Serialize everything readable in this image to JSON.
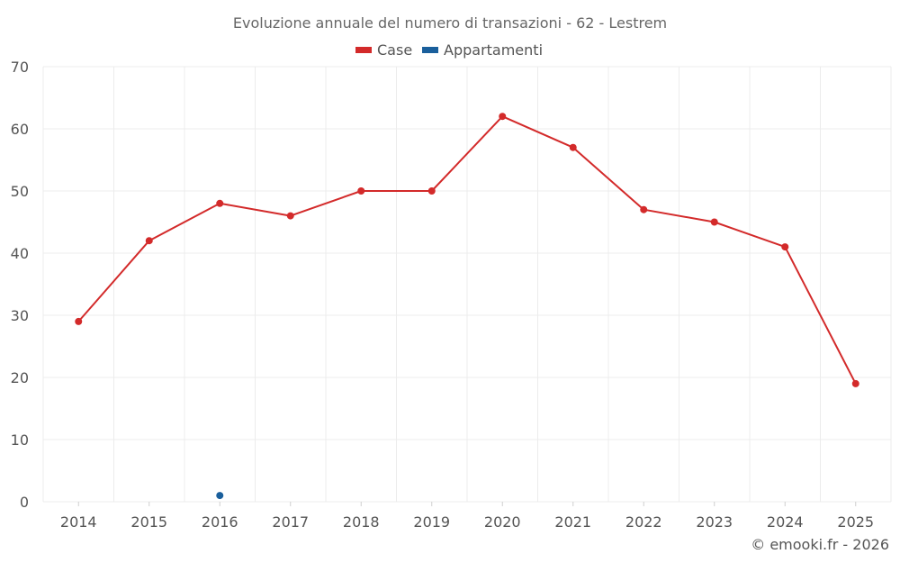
{
  "chart_data": {
    "type": "line",
    "title": "Evoluzione annuale del numero di transazioni - 62 - Lestrem",
    "categories": [
      "2014",
      "2015",
      "2016",
      "2017",
      "2018",
      "2019",
      "2020",
      "2021",
      "2022",
      "2023",
      "2024",
      "2025"
    ],
    "series": [
      {
        "name": "Case",
        "color": "#d32a2a",
        "values": [
          29,
          42,
          48,
          46,
          50,
          50,
          62,
          57,
          47,
          45,
          41,
          19
        ]
      },
      {
        "name": "Appartamenti",
        "color": "#1a5f9c",
        "values": [
          null,
          null,
          1,
          null,
          null,
          null,
          null,
          null,
          null,
          null,
          null,
          null
        ]
      }
    ],
    "ylim": [
      0,
      70
    ],
    "yticks": [
      0,
      10,
      20,
      30,
      40,
      50,
      60,
      70
    ],
    "xlabel": "",
    "ylabel": "",
    "grid": true,
    "legend_position": "top-center"
  },
  "credit": "© emooki.fr - 2026"
}
